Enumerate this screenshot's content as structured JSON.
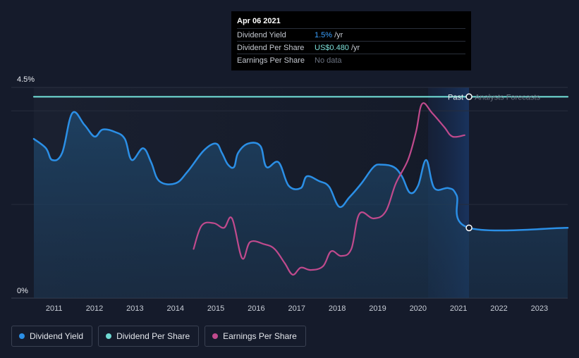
{
  "tooltip": {
    "date": "Apr 06 2021",
    "rows": [
      {
        "label": "Dividend Yield",
        "value": "1.5%",
        "unit": "/yr"
      },
      {
        "label": "Dividend Per Share",
        "value": "US$0.480",
        "unit": "/yr"
      },
      {
        "label": "Earnings Per Share",
        "value": "No data"
      }
    ]
  },
  "regions": {
    "past_label": "Past",
    "forecast_label": "Analysts Forecasts"
  },
  "legend": [
    {
      "label": "Dividend Yield",
      "color": "#2b8fe6"
    },
    {
      "label": "Dividend Per Share",
      "color": "#6fd9d2"
    },
    {
      "label": "Earnings Per Share",
      "color": "#c04a8d"
    }
  ],
  "chart_data": {
    "type": "line",
    "y_tick_labels": [
      "4.5%",
      "0%"
    ],
    "ylim": [
      0,
      4.5
    ],
    "xlim": [
      2010.5,
      2023.7
    ],
    "x_ticks": [
      2011,
      2012,
      2013,
      2014,
      2015,
      2016,
      2017,
      2018,
      2019,
      2020,
      2021,
      2022,
      2023
    ],
    "highlight_date": 2021.26,
    "series": [
      {
        "name": "Dividend Yield",
        "color": "#2b8fe6",
        "area": true,
        "points": [
          [
            2010.5,
            3.4
          ],
          [
            2010.8,
            3.2
          ],
          [
            2010.95,
            2.95
          ],
          [
            2011.2,
            3.1
          ],
          [
            2011.45,
            3.95
          ],
          [
            2011.75,
            3.7
          ],
          [
            2012.0,
            3.45
          ],
          [
            2012.2,
            3.6
          ],
          [
            2012.5,
            3.55
          ],
          [
            2012.75,
            3.4
          ],
          [
            2012.92,
            2.95
          ],
          [
            2013.2,
            3.2
          ],
          [
            2013.4,
            2.9
          ],
          [
            2013.6,
            2.5
          ],
          [
            2014.0,
            2.45
          ],
          [
            2014.3,
            2.7
          ],
          [
            2014.7,
            3.15
          ],
          [
            2015.0,
            3.3
          ],
          [
            2015.15,
            3.1
          ],
          [
            2015.3,
            2.85
          ],
          [
            2015.45,
            2.8
          ],
          [
            2015.55,
            3.1
          ],
          [
            2015.8,
            3.3
          ],
          [
            2016.1,
            3.25
          ],
          [
            2016.25,
            2.8
          ],
          [
            2016.55,
            2.9
          ],
          [
            2016.8,
            2.4
          ],
          [
            2017.1,
            2.35
          ],
          [
            2017.25,
            2.6
          ],
          [
            2017.55,
            2.5
          ],
          [
            2017.8,
            2.38
          ],
          [
            2018.05,
            1.95
          ],
          [
            2018.3,
            2.15
          ],
          [
            2018.6,
            2.45
          ],
          [
            2018.9,
            2.8
          ],
          [
            2019.1,
            2.85
          ],
          [
            2019.4,
            2.8
          ],
          [
            2019.6,
            2.6
          ],
          [
            2019.8,
            2.25
          ],
          [
            2020.0,
            2.4
          ],
          [
            2020.2,
            2.95
          ],
          [
            2020.4,
            2.35
          ],
          [
            2020.75,
            2.35
          ],
          [
            2020.95,
            2.2
          ],
          [
            2021.26,
            1.5
          ],
          [
            2023.7,
            1.5
          ]
        ]
      },
      {
        "name": "Dividend Per Share",
        "color": "#6fd9d2",
        "area": false,
        "points": [
          [
            2010.5,
            4.3
          ],
          [
            2023.7,
            4.3
          ]
        ]
      },
      {
        "name": "Earnings Per Share",
        "color": "#c04a8d",
        "area": false,
        "points": [
          [
            2014.45,
            1.05
          ],
          [
            2014.65,
            1.55
          ],
          [
            2014.95,
            1.6
          ],
          [
            2015.2,
            1.5
          ],
          [
            2015.4,
            1.7
          ],
          [
            2015.65,
            0.85
          ],
          [
            2015.85,
            1.2
          ],
          [
            2016.2,
            1.15
          ],
          [
            2016.45,
            1.05
          ],
          [
            2016.7,
            0.75
          ],
          [
            2016.9,
            0.5
          ],
          [
            2017.1,
            0.65
          ],
          [
            2017.35,
            0.6
          ],
          [
            2017.65,
            0.68
          ],
          [
            2017.85,
            1.0
          ],
          [
            2018.1,
            0.9
          ],
          [
            2018.35,
            1.05
          ],
          [
            2018.55,
            1.8
          ],
          [
            2018.9,
            1.7
          ],
          [
            2019.2,
            1.85
          ],
          [
            2019.45,
            2.45
          ],
          [
            2019.75,
            2.95
          ],
          [
            2019.95,
            3.55
          ],
          [
            2020.1,
            4.15
          ],
          [
            2020.35,
            3.95
          ],
          [
            2020.65,
            3.65
          ],
          [
            2020.85,
            3.45
          ],
          [
            2021.15,
            3.48
          ]
        ]
      }
    ]
  }
}
